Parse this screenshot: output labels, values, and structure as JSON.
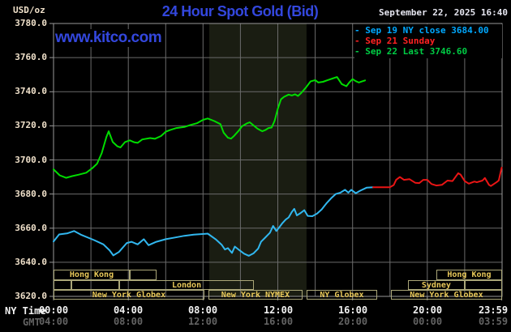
{
  "header": {
    "unit_label": "USD/oz",
    "title": "24 Hour Spot Gold (Bid)",
    "datetime": "September 22, 2025 16:40",
    "site": "www.kitco.com"
  },
  "legend": {
    "items": [
      {
        "text": "- Sep 19 NY close 3684.00",
        "color": "#00a8ff"
      },
      {
        "text": "- Sep 21 Sunday",
        "color": "#ff2222"
      },
      {
        "text": "- Sep 22 Last 3746.60",
        "color": "#00cc44"
      }
    ]
  },
  "axes": {
    "ny_caption": "NY Time",
    "gmt_caption": "GMT",
    "ny_ticks": [
      "00:00",
      "04:00",
      "08:00",
      "12:00",
      "16:00",
      "20:00",
      "23:59"
    ],
    "gmt_ticks": [
      "04:00",
      "08:00",
      "12:00",
      "16:00",
      "20:00",
      "00:00",
      "03:59"
    ],
    "tick_hours": [
      0,
      4,
      8,
      12,
      16,
      20,
      23.983
    ]
  },
  "colors": {
    "background": "#000000",
    "title_blue": "#3347dd",
    "kitco_blue": "#3347dd",
    "datetime_text": "#e6e6f0",
    "y_label": "#f0e1ca",
    "ny_label": "#f2f2f2",
    "gmt_label": "#636363",
    "grid": "#6b6b6b",
    "plot_border": "#999999",
    "band": "#1a1d12",
    "session_border": "#aaa678",
    "session_text": "#e9c95a",
    "series_green": "#00dd00",
    "series_cyan": "#31b7ef",
    "series_red": "#ea1515"
  },
  "chart_data": {
    "type": "line",
    "title": "24 Hour Spot Gold (Bid)",
    "ylabel": "USD/oz",
    "y_axis": {
      "range": [
        3620,
        3780
      ],
      "tick_step": 20,
      "ticks": [
        3780,
        3760,
        3740,
        3720,
        3700,
        3680,
        3660,
        3640,
        3620
      ]
    },
    "x_axis": {
      "range_hours": [
        0,
        24
      ],
      "grid_step_hours": 2,
      "label_step_hours": 4
    },
    "grid": "on",
    "legend_position": "top-right",
    "shaded_band_hours": [
      8.33,
      13.54
    ],
    "series": [
      {
        "name": "Sep 22 (Last 3746.60)",
        "color_key": "series_green",
        "points": [
          [
            0,
            3694.5
          ],
          [
            0.33,
            3691
          ],
          [
            0.67,
            3689.5
          ],
          [
            1,
            3690.5
          ],
          [
            1.33,
            3691.3
          ],
          [
            1.75,
            3692.5
          ],
          [
            2.08,
            3695.2
          ],
          [
            2.33,
            3697.8
          ],
          [
            2.58,
            3704
          ],
          [
            2.83,
            3713.5
          ],
          [
            2.95,
            3716.8
          ],
          [
            3.17,
            3710.5
          ],
          [
            3.42,
            3708
          ],
          [
            3.58,
            3707.3
          ],
          [
            3.83,
            3710.5
          ],
          [
            4.08,
            3711.5
          ],
          [
            4.33,
            3710.3
          ],
          [
            4.5,
            3710
          ],
          [
            4.75,
            3712
          ],
          [
            5.17,
            3712.8
          ],
          [
            5.42,
            3712.4
          ],
          [
            5.75,
            3714
          ],
          [
            6,
            3716.5
          ],
          [
            6.25,
            3717.6
          ],
          [
            6.58,
            3718.7
          ],
          [
            7,
            3719.3
          ],
          [
            7.33,
            3720.5
          ],
          [
            7.67,
            3721.5
          ],
          [
            8,
            3723.5
          ],
          [
            8.25,
            3724.3
          ],
          [
            8.6,
            3722.8
          ],
          [
            8.93,
            3721
          ],
          [
            9.1,
            3716
          ],
          [
            9.33,
            3713
          ],
          [
            9.5,
            3712.5
          ],
          [
            9.67,
            3714.2
          ],
          [
            9.92,
            3717.3
          ],
          [
            10.08,
            3719.7
          ],
          [
            10.33,
            3721.3
          ],
          [
            10.5,
            3722.1
          ],
          [
            10.67,
            3720.5
          ],
          [
            10.92,
            3718.3
          ],
          [
            11.17,
            3716.8
          ],
          [
            11.33,
            3717.5
          ],
          [
            11.5,
            3718.7
          ],
          [
            11.67,
            3719
          ],
          [
            11.83,
            3723
          ],
          [
            12,
            3730
          ],
          [
            12.17,
            3735.5
          ],
          [
            12.33,
            3737
          ],
          [
            12.58,
            3738.3
          ],
          [
            12.75,
            3737.8
          ],
          [
            12.92,
            3738.5
          ],
          [
            13.08,
            3737.5
          ],
          [
            13.25,
            3739.2
          ],
          [
            13.5,
            3742.4
          ],
          [
            13.75,
            3746
          ],
          [
            14,
            3746.8
          ],
          [
            14.17,
            3745.4
          ],
          [
            14.42,
            3745.8
          ],
          [
            14.67,
            3746.8
          ],
          [
            14.92,
            3747.7
          ],
          [
            15.17,
            3748.6
          ],
          [
            15.42,
            3744.5
          ],
          [
            15.67,
            3743.2
          ],
          [
            15.83,
            3745.5
          ],
          [
            16,
            3747.4
          ],
          [
            16.17,
            3746.2
          ],
          [
            16.33,
            3745.4
          ],
          [
            16.5,
            3746
          ],
          [
            16.67,
            3746.6
          ]
        ]
      },
      {
        "name": "Sep 19 (NY close 3684.00)",
        "color_key": "series_cyan",
        "points": [
          [
            0,
            3652.2
          ],
          [
            0.3,
            3656.3
          ],
          [
            0.75,
            3657
          ],
          [
            1.1,
            3658.3
          ],
          [
            1.5,
            3656
          ],
          [
            2.17,
            3653
          ],
          [
            2.67,
            3650.5
          ],
          [
            3,
            3647
          ],
          [
            3.2,
            3644
          ],
          [
            3.5,
            3646
          ],
          [
            3.92,
            3651.3
          ],
          [
            4.17,
            3652
          ],
          [
            4.5,
            3650.5
          ],
          [
            4.83,
            3653.5
          ],
          [
            5.08,
            3650
          ],
          [
            5.5,
            3652
          ],
          [
            6,
            3653.5
          ],
          [
            6.5,
            3654.5
          ],
          [
            7,
            3655.5
          ],
          [
            7.5,
            3656.2
          ],
          [
            8.25,
            3656.8
          ],
          [
            8.67,
            3653.5
          ],
          [
            9,
            3650.2
          ],
          [
            9.17,
            3647.5
          ],
          [
            9.33,
            3648.3
          ],
          [
            9.55,
            3645.5
          ],
          [
            9.7,
            3649.2
          ],
          [
            9.95,
            3647
          ],
          [
            10.2,
            3645
          ],
          [
            10.45,
            3643.8
          ],
          [
            10.7,
            3645.2
          ],
          [
            10.95,
            3648
          ],
          [
            11.1,
            3652
          ],
          [
            11.3,
            3654.2
          ],
          [
            11.58,
            3657.3
          ],
          [
            11.75,
            3661.3
          ],
          [
            11.92,
            3658.3
          ],
          [
            12.08,
            3660.5
          ],
          [
            12.25,
            3663
          ],
          [
            12.42,
            3665
          ],
          [
            12.58,
            3666.3
          ],
          [
            12.75,
            3669.5
          ],
          [
            12.88,
            3671.3
          ],
          [
            13.02,
            3667.5
          ],
          [
            13.2,
            3668.7
          ],
          [
            13.42,
            3670.5
          ],
          [
            13.6,
            3667.2
          ],
          [
            13.85,
            3667
          ],
          [
            14.1,
            3668.5
          ],
          [
            14.35,
            3671
          ],
          [
            14.6,
            3674.5
          ],
          [
            14.85,
            3677.5
          ],
          [
            15.1,
            3680
          ],
          [
            15.35,
            3680.8
          ],
          [
            15.6,
            3682.5
          ],
          [
            15.77,
            3680.8
          ],
          [
            15.93,
            3682.5
          ],
          [
            16.17,
            3680.5
          ],
          [
            16.42,
            3682
          ],
          [
            16.75,
            3683.7
          ],
          [
            17.1,
            3684
          ]
        ]
      },
      {
        "name": "Sep 21 Sunday",
        "color_key": "series_red",
        "points": [
          [
            17.1,
            3684
          ],
          [
            18,
            3684
          ],
          [
            18.2,
            3685.3
          ],
          [
            18.33,
            3688.3
          ],
          [
            18.53,
            3690
          ],
          [
            18.75,
            3688.3
          ],
          [
            19.05,
            3688.7
          ],
          [
            19.35,
            3686.6
          ],
          [
            19.57,
            3686.4
          ],
          [
            19.78,
            3688.3
          ],
          [
            20,
            3688.3
          ],
          [
            20.22,
            3685.9
          ],
          [
            20.48,
            3685
          ],
          [
            20.78,
            3685.4
          ],
          [
            21.08,
            3687.9
          ],
          [
            21.35,
            3687.6
          ],
          [
            21.65,
            3692.2
          ],
          [
            21.78,
            3691.4
          ],
          [
            22,
            3687.6
          ],
          [
            22.22,
            3686.1
          ],
          [
            22.52,
            3687.3
          ],
          [
            22.65,
            3686.9
          ],
          [
            22.95,
            3687.9
          ],
          [
            23.08,
            3689.4
          ],
          [
            23.3,
            3685.4
          ],
          [
            23.4,
            3684.7
          ],
          [
            23.7,
            3686.9
          ],
          [
            23.82,
            3688
          ],
          [
            23.98,
            3695.5
          ]
        ]
      }
    ],
    "sessions": [
      {
        "row": 0,
        "boxes": [
          {
            "t1": 0,
            "t2": 4.08,
            "label": "Hong Kong"
          },
          {
            "t1": 4.08,
            "t2": 5.51,
            "label": ""
          },
          {
            "t1": 20.48,
            "t2": 24,
            "label": "Hong Kong"
          }
        ]
      },
      {
        "row": 1,
        "boxes": [
          {
            "t1": 0,
            "t2": 0.95,
            "label": ""
          },
          {
            "t1": 0.95,
            "t2": 3.52,
            "label": ""
          },
          {
            "t1": 3.52,
            "t2": 10.72,
            "label": "London"
          },
          {
            "t1": 18.96,
            "t2": 22,
            "label": "Sydney"
          },
          {
            "t1": 22,
            "t2": 24,
            "label": ""
          }
        ]
      },
      {
        "row": 2,
        "boxes": [
          {
            "t1": 0,
            "t2": 8.07,
            "label": "New York Globex"
          },
          {
            "t1": 8.29,
            "t2": 13.32,
            "label": "New York NYMEX"
          },
          {
            "t1": 13.54,
            "t2": 17.31,
            "label": "NY Globex"
          },
          {
            "t1": 18.05,
            "t2": 24,
            "label": "New York Globex"
          }
        ]
      }
    ]
  }
}
